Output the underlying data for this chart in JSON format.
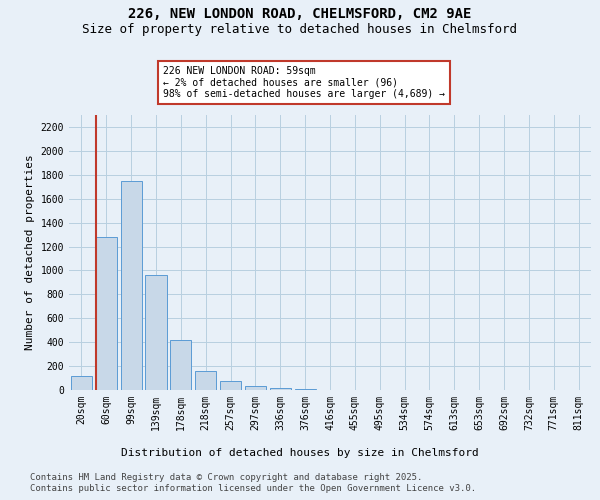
{
  "title_line1": "226, NEW LONDON ROAD, CHELMSFORD, CM2 9AE",
  "title_line2": "Size of property relative to detached houses in Chelmsford",
  "xlabel": "Distribution of detached houses by size in Chelmsford",
  "ylabel": "Number of detached properties",
  "bar_color": "#c8d8e8",
  "bar_edge_color": "#5b9bd5",
  "annotation_box_color": "#c0392b",
  "annotation_text": "226 NEW LONDON ROAD: 59sqm\n← 2% of detached houses are smaller (96)\n98% of semi-detached houses are larger (4,689) →",
  "annotation_fontsize": 7.0,
  "categories": [
    "20sqm",
    "60sqm",
    "99sqm",
    "139sqm",
    "178sqm",
    "218sqm",
    "257sqm",
    "297sqm",
    "336sqm",
    "376sqm",
    "416sqm",
    "455sqm",
    "495sqm",
    "534sqm",
    "574sqm",
    "613sqm",
    "653sqm",
    "692sqm",
    "732sqm",
    "771sqm",
    "811sqm"
  ],
  "values": [
    120,
    1280,
    1750,
    960,
    415,
    155,
    75,
    35,
    20,
    5,
    0,
    0,
    0,
    0,
    0,
    0,
    0,
    0,
    0,
    0,
    0
  ],
  "ylim": [
    0,
    2300
  ],
  "yticks": [
    0,
    200,
    400,
    600,
    800,
    1000,
    1200,
    1400,
    1600,
    1800,
    2000,
    2200
  ],
  "grid_color": "#b8cfe0",
  "background_color": "#e8f0f8",
  "plot_bg_color": "#e8f0f8",
  "footer_line1": "Contains HM Land Registry data © Crown copyright and database right 2025.",
  "footer_line2": "Contains public sector information licensed under the Open Government Licence v3.0.",
  "title_fontsize": 10,
  "subtitle_fontsize": 9,
  "axis_label_fontsize": 8,
  "tick_fontsize": 7,
  "footer_fontsize": 6.5,
  "vline_x": 0.6
}
